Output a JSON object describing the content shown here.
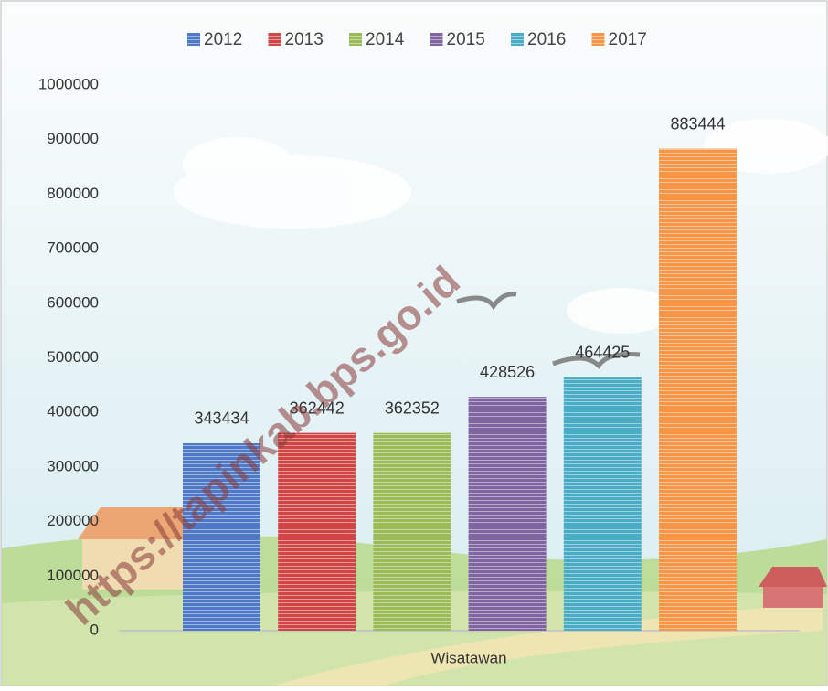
{
  "chart_data": {
    "type": "bar",
    "categories": [
      "Wisatawan"
    ],
    "series": [
      {
        "name": "2012",
        "color": "#4f79c7",
        "values": [
          343434
        ]
      },
      {
        "name": "2013",
        "color": "#d04545",
        "values": [
          362442
        ]
      },
      {
        "name": "2014",
        "color": "#9bbb59",
        "values": [
          362352
        ]
      },
      {
        "name": "2015",
        "color": "#8064a2",
        "values": [
          428526
        ]
      },
      {
        "name": "2016",
        "color": "#4bacc6",
        "values": [
          464425
        ]
      },
      {
        "name": "2017",
        "color": "#f79646",
        "values": [
          883444
        ]
      }
    ],
    "ylim": [
      0,
      1000000
    ],
    "yticks": [
      0,
      100000,
      200000,
      300000,
      400000,
      500000,
      600000,
      700000,
      800000,
      900000,
      1000000
    ],
    "legend": "top",
    "grid": false,
    "watermark": "https://tapinkab.bps.go.id"
  }
}
